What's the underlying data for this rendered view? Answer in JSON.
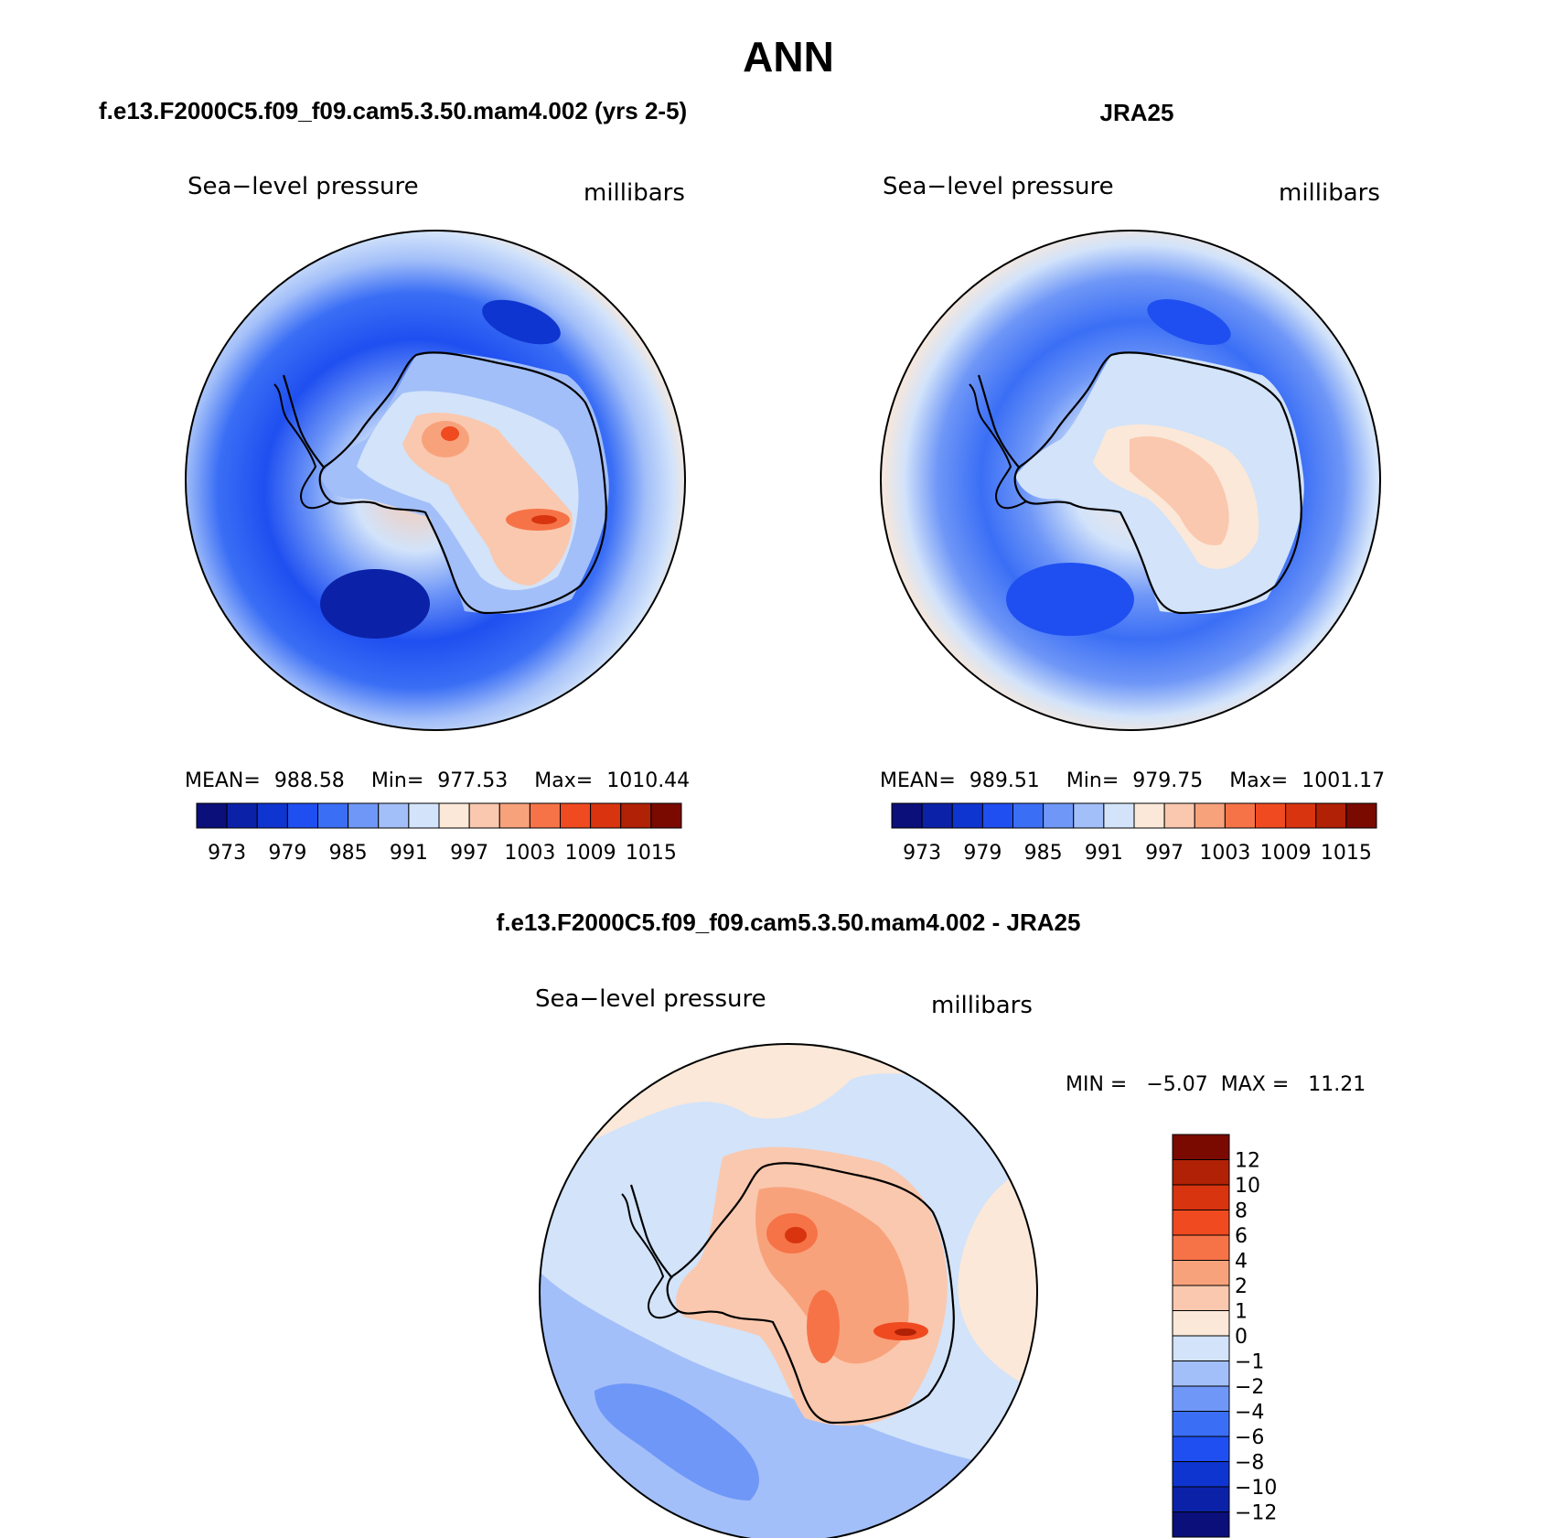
{
  "main_title": "ANN",
  "panels": {
    "model": {
      "header": "f.e13.F2000C5.f09_f09.cam5.3.50.mam4.002 (yrs 2-5)",
      "variable": "Sea−level pressure",
      "units": "millibars",
      "stats": {
        "mean_label": "MEAN=",
        "mean": "988.58",
        "min_label": "Min=",
        "min": "977.53",
        "max_label": "Max=",
        "max": "1010.44"
      }
    },
    "obs": {
      "header": "JRA25",
      "variable": "Sea−level pressure",
      "units": "millibars",
      "stats": {
        "mean_label": "MEAN=",
        "mean": "989.51",
        "min_label": "Min=",
        "min": "979.75",
        "max_label": "Max=",
        "max": "1001.17"
      }
    },
    "diff": {
      "header": "f.e13.F2000C5.f09_f09.cam5.3.50.mam4.002 - JRA25",
      "variable": "Sea−level pressure",
      "units": "millibars",
      "stats_line": "MIN =   −5.07  MAX =   11.21"
    }
  },
  "colorbar_abs": {
    "labels": [
      "973",
      "979",
      "985",
      "991",
      "997",
      "1003",
      "1009",
      "1015"
    ],
    "colors": [
      "#0a0f7a",
      "#0b22a8",
      "#0f35d0",
      "#1f4ff0",
      "#3a6ef5",
      "#6f97f7",
      "#a3bff9",
      "#d2e3fa",
      "#fbe8d8",
      "#fac8ae",
      "#f8a27c",
      "#f67348",
      "#f04a20",
      "#d83410",
      "#b02105",
      "#7a0a00"
    ]
  },
  "colorbar_diff": {
    "labels": [
      "12",
      "10",
      "8",
      "6",
      "4",
      "2",
      "1",
      "0",
      "−1",
      "−2",
      "−4",
      "−6",
      "−8",
      "−10",
      "−12"
    ],
    "colors": [
      "#7a0a00",
      "#b02105",
      "#d83410",
      "#f04a20",
      "#f67348",
      "#f8a27c",
      "#fac8ae",
      "#fbe8d8",
      "#d2e3fa",
      "#a3bff9",
      "#6f97f7",
      "#3a6ef5",
      "#1f4ff0",
      "#0f35d0",
      "#0b22a8",
      "#0a0f7a"
    ]
  }
}
